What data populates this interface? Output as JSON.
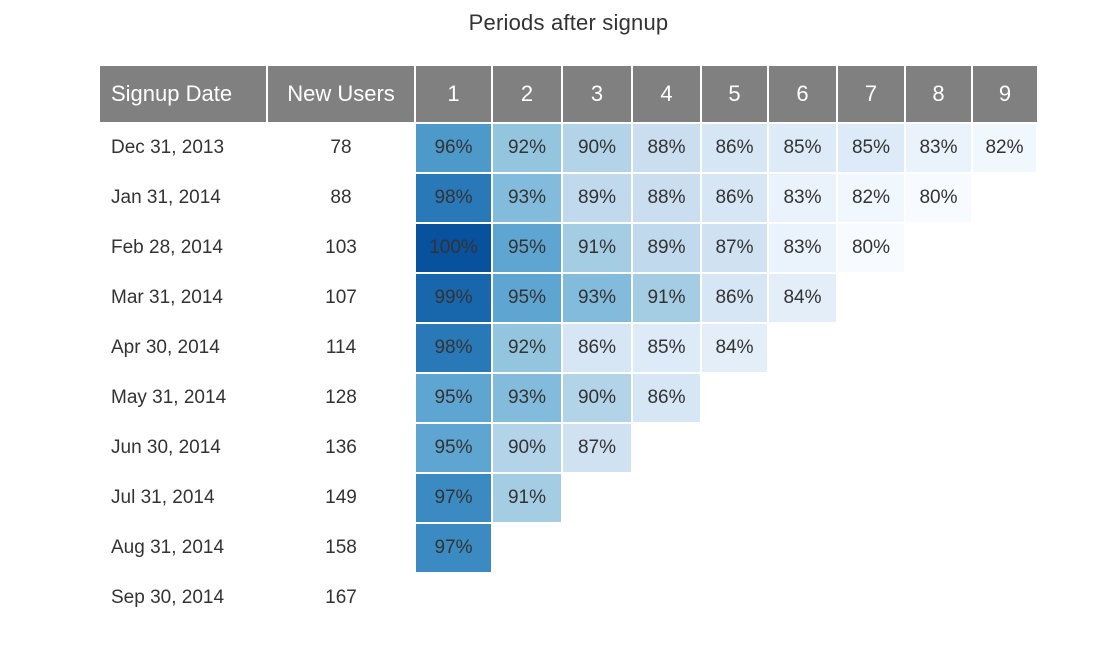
{
  "chart_data": {
    "type": "heatmap",
    "title": "Periods after signup",
    "columns": [
      "Signup Date",
      "New Users",
      "1",
      "2",
      "3",
      "4",
      "5",
      "6",
      "7",
      "8",
      "9"
    ],
    "rows": [
      {
        "date": "Dec 31, 2013",
        "new_users": 78,
        "values": [
          96,
          92,
          90,
          88,
          86,
          85,
          85,
          83,
          82
        ]
      },
      {
        "date": "Jan 31, 2014",
        "new_users": 88,
        "values": [
          98,
          93,
          89,
          88,
          86,
          83,
          82,
          80
        ]
      },
      {
        "date": "Feb 28, 2014",
        "new_users": 103,
        "values": [
          100,
          95,
          91,
          89,
          87,
          83,
          80
        ]
      },
      {
        "date": "Mar 31, 2014",
        "new_users": 107,
        "values": [
          99,
          95,
          93,
          91,
          86,
          84
        ]
      },
      {
        "date": "Apr 30, 2014",
        "new_users": 114,
        "values": [
          98,
          92,
          86,
          85,
          84
        ]
      },
      {
        "date": "May 31, 2014",
        "new_users": 128,
        "values": [
          95,
          93,
          90,
          86
        ]
      },
      {
        "date": "Jun 30, 2014",
        "new_users": 136,
        "values": [
          95,
          90,
          87
        ]
      },
      {
        "date": "Jul 31, 2014",
        "new_users": 149,
        "values": [
          97,
          91
        ]
      },
      {
        "date": "Aug 31, 2014",
        "new_users": 158,
        "values": [
          97
        ]
      },
      {
        "date": "Sep 30, 2014",
        "new_users": 167,
        "values": []
      }
    ],
    "value_suffix": "%",
    "color_scale": {
      "low": "#f7fbff",
      "high": "#08519c",
      "text": "#333333"
    }
  }
}
